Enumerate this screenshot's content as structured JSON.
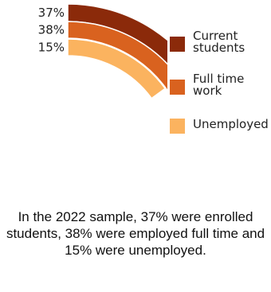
{
  "chart_data": {
    "type": "radial-bar",
    "series": [
      {
        "name": "Current students",
        "value": 37,
        "label": "37%",
        "color": "#8B2A0A"
      },
      {
        "name": "Full time work",
        "value": 38,
        "label": "38%",
        "color": "#D9621F"
      },
      {
        "name": "Unemployed",
        "value": 15,
        "label": "15%",
        "color": "#FBB35F"
      }
    ],
    "max": 100
  },
  "legend": [
    {
      "line1": "Current",
      "line2": "students",
      "color": "#8B2A0A"
    },
    {
      "line1": "Full time",
      "line2": "work",
      "color": "#D9621F"
    },
    {
      "line1": "Unemployed",
      "line2": "",
      "color": "#FBB35F"
    }
  ],
  "caption": "In the 2022 sample, 37% were enrolled students, 38% were employed full time and 15% were unemployed."
}
